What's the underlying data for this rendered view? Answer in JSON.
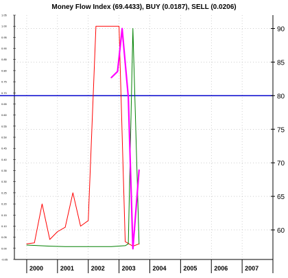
{
  "chart_data": {
    "type": "line",
    "title": "Money Flow Index (69.4433), BUY (0.0187), SELL (0.0206)",
    "x_ticks": [
      "2000",
      "2001",
      "2002",
      "2003",
      "2004",
      "2005",
      "2006",
      "2007"
    ],
    "x_range": [
      1999.6,
      2008.0
    ],
    "y_left": {
      "range": [
        -0.05,
        1.05
      ],
      "ticks": [
        "-0.05",
        "0.00",
        "0.05",
        "0.10",
        "0.15",
        "0.20",
        "0.25",
        "0.30",
        "0.35",
        "0.40",
        "0.45",
        "0.50",
        "0.55",
        "0.60",
        "0.65",
        "0.70",
        "0.75",
        "0.80",
        "0.85",
        "0.90",
        "0.95",
        "1.00",
        "1.05"
      ]
    },
    "y_right": {
      "range": [
        55.6,
        92.0
      ],
      "ticks": [
        "60",
        "65",
        "70",
        "75",
        "80",
        "85",
        "90"
      ]
    },
    "reference_line": {
      "axis": "right",
      "value": 80,
      "color": "#0000cc"
    },
    "grid": true,
    "series": [
      {
        "axis": "left",
        "color": "#ff0000",
        "points": [
          {
            "x": 2000.0,
            "y": 0.02
          },
          {
            "x": 2000.25,
            "y": 0.025
          },
          {
            "x": 2000.5,
            "y": 0.2
          },
          {
            "x": 2000.75,
            "y": 0.04
          },
          {
            "x": 2001.0,
            "y": 0.075
          },
          {
            "x": 2001.25,
            "y": 0.095
          },
          {
            "x": 2001.5,
            "y": 0.25
          },
          {
            "x": 2001.75,
            "y": 0.1
          },
          {
            "x": 2002.0,
            "y": 0.125
          },
          {
            "x": 2002.25,
            "y": 1.0
          },
          {
            "x": 2002.5,
            "y": 1.0
          },
          {
            "x": 2002.75,
            "y": 1.0
          },
          {
            "x": 2003.0,
            "y": 1.0
          },
          {
            "x": 2003.2,
            "y": 0.03
          },
          {
            "x": 2003.45,
            "y": 0.01
          },
          {
            "x": 2003.65,
            "y": 0.02
          }
        ]
      },
      {
        "axis": "left",
        "color": "#008000",
        "points": [
          {
            "x": 2000.0,
            "y": 0.015
          },
          {
            "x": 2000.75,
            "y": 0.01
          },
          {
            "x": 2001.25,
            "y": 0.008
          },
          {
            "x": 2002.0,
            "y": 0.008
          },
          {
            "x": 2002.75,
            "y": 0.008
          },
          {
            "x": 2003.2,
            "y": 0.012
          },
          {
            "x": 2003.3,
            "y": 0.02
          },
          {
            "x": 2003.45,
            "y": 0.99
          },
          {
            "x": 2003.65,
            "y": 0.02
          }
        ]
      },
      {
        "axis": "right",
        "color": "#ff00ff",
        "points": [
          {
            "x": 2002.75,
            "y": 82.7
          },
          {
            "x": 2002.95,
            "y": 83.6
          },
          {
            "x": 2003.1,
            "y": 90.0
          },
          {
            "x": 2003.3,
            "y": 79.8
          },
          {
            "x": 2003.45,
            "y": 57.2
          },
          {
            "x": 2003.65,
            "y": 68.9
          }
        ]
      }
    ]
  }
}
